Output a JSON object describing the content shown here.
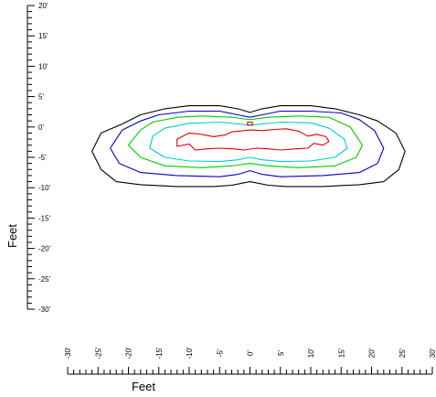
{
  "chart_data": {
    "type": "contour",
    "title": "",
    "xlabel": "Feet",
    "ylabel": "Feet",
    "xlim": [
      -30,
      30
    ],
    "ylim": [
      -30,
      20
    ],
    "x_ticks": [
      "-30'",
      "-25'",
      "-20'",
      "-15'",
      "-10'",
      "-5'",
      "0'",
      "5'",
      "10'",
      "15'",
      "20'",
      "25'",
      "30'"
    ],
    "y_ticks": [
      "20'",
      "15'",
      "10'",
      "5'",
      "0'",
      "-5'",
      "-10'",
      "-15'",
      "-20'",
      "-25'",
      "-30'"
    ],
    "series": [
      {
        "color": "#000000",
        "points": [
          [
            -21,
            0.5
          ],
          [
            -18,
            2
          ],
          [
            -14,
            3
          ],
          [
            -10,
            3.5
          ],
          [
            -5,
            3.5
          ],
          [
            -2,
            3
          ],
          [
            0,
            2.4
          ],
          [
            2,
            3
          ],
          [
            5,
            3.5
          ],
          [
            10,
            3.5
          ],
          [
            14,
            3
          ],
          [
            18,
            2
          ],
          [
            21,
            1
          ],
          [
            24,
            -1
          ],
          [
            25.5,
            -4
          ],
          [
            24.5,
            -7
          ],
          [
            22,
            -9
          ],
          [
            18,
            -9.5
          ],
          [
            12,
            -9.8
          ],
          [
            6,
            -9.8
          ],
          [
            3,
            -9.6
          ],
          [
            0,
            -9
          ],
          [
            -3,
            -9.6
          ],
          [
            -6,
            -9.8
          ],
          [
            -12,
            -9.8
          ],
          [
            -18,
            -9.5
          ],
          [
            -22,
            -9
          ],
          [
            -24.5,
            -7
          ],
          [
            -26,
            -4
          ],
          [
            -24.5,
            -1
          ]
        ]
      },
      {
        "color": "#0000cc",
        "points": [
          [
            -18,
            1
          ],
          [
            -15,
            2
          ],
          [
            -10,
            2.6
          ],
          [
            -5,
            2.6
          ],
          [
            -2,
            2
          ],
          [
            0,
            1.6
          ],
          [
            2,
            2
          ],
          [
            5,
            2.6
          ],
          [
            10,
            2.6
          ],
          [
            15,
            2.3
          ],
          [
            18,
            1.2
          ],
          [
            20.5,
            -0.6
          ],
          [
            22,
            -3.5
          ],
          [
            21,
            -6
          ],
          [
            18,
            -7.5
          ],
          [
            12,
            -8
          ],
          [
            5,
            -8.2
          ],
          [
            2,
            -7.8
          ],
          [
            0,
            -7.2
          ],
          [
            -2,
            -7.8
          ],
          [
            -5,
            -8.2
          ],
          [
            -12,
            -8
          ],
          [
            -18,
            -7.5
          ],
          [
            -21.5,
            -6
          ],
          [
            -23,
            -3.5
          ],
          [
            -21,
            -0.5
          ]
        ]
      },
      {
        "color": "#00cc00",
        "points": [
          [
            -16,
            0.8
          ],
          [
            -12,
            1.6
          ],
          [
            -8,
            1.8
          ],
          [
            -3,
            1.6
          ],
          [
            0,
            1.2
          ],
          [
            3,
            1.6
          ],
          [
            8,
            1.8
          ],
          [
            13,
            1.6
          ],
          [
            16.5,
            0
          ],
          [
            18.5,
            -3
          ],
          [
            17.5,
            -5
          ],
          [
            14,
            -6.4
          ],
          [
            8,
            -6.7
          ],
          [
            3,
            -6.4
          ],
          [
            0,
            -6
          ],
          [
            -3,
            -6.4
          ],
          [
            -8,
            -6.7
          ],
          [
            -14,
            -6.4
          ],
          [
            -18,
            -5
          ],
          [
            -20,
            -3
          ],
          [
            -18,
            -0.5
          ]
        ]
      },
      {
        "color": "#00cccc",
        "points": [
          [
            -14,
            -0.2
          ],
          [
            -10,
            0.6
          ],
          [
            -5,
            0.8
          ],
          [
            -2,
            0.5
          ],
          [
            0,
            0.3
          ],
          [
            2,
            0.5
          ],
          [
            5,
            0.8
          ],
          [
            10,
            0.7
          ],
          [
            13,
            -0.2
          ],
          [
            15.5,
            -2
          ],
          [
            16,
            -3.5
          ],
          [
            14,
            -5
          ],
          [
            10,
            -5.6
          ],
          [
            5,
            -5.7
          ],
          [
            2,
            -5.4
          ],
          [
            0,
            -5
          ],
          [
            -2,
            -5.4
          ],
          [
            -5,
            -5.7
          ],
          [
            -10,
            -5.6
          ],
          [
            -14,
            -5
          ],
          [
            -16.5,
            -3.5
          ],
          [
            -16,
            -1.5
          ]
        ]
      },
      {
        "color": "#dd0000",
        "points": [
          [
            -12,
            -2
          ],
          [
            -10,
            -1
          ],
          [
            -8,
            -1.2
          ],
          [
            -6,
            -1.6
          ],
          [
            -4,
            -1.3
          ],
          [
            -3,
            -0.8
          ],
          [
            -1,
            -0.6
          ],
          [
            0,
            -0.5
          ],
          [
            2,
            -0.6
          ],
          [
            4,
            -0.4
          ],
          [
            6,
            -0.3
          ],
          [
            8,
            -0.7
          ],
          [
            9.5,
            -1.5
          ],
          [
            11,
            -1.2
          ],
          [
            12.5,
            -1.6
          ],
          [
            13,
            -2.4
          ],
          [
            12,
            -3
          ],
          [
            10.5,
            -2.7
          ],
          [
            9.5,
            -3.5
          ],
          [
            7.5,
            -3.6
          ],
          [
            5,
            -3.8
          ],
          [
            3,
            -3.6
          ],
          [
            1,
            -3.5
          ],
          [
            -1,
            -3.8
          ],
          [
            -3,
            -3.6
          ],
          [
            -5,
            -3.5
          ],
          [
            -7,
            -3.6
          ],
          [
            -9,
            -3.8
          ],
          [
            -10,
            -2.8
          ],
          [
            -12,
            -3.2
          ]
        ]
      },
      {
        "color": "#dd0000",
        "points": [
          [
            -0.4,
            0.3
          ],
          [
            0.4,
            0.3
          ],
          [
            0.4,
            0.8
          ],
          [
            -0.4,
            0.8
          ]
        ]
      }
    ]
  }
}
